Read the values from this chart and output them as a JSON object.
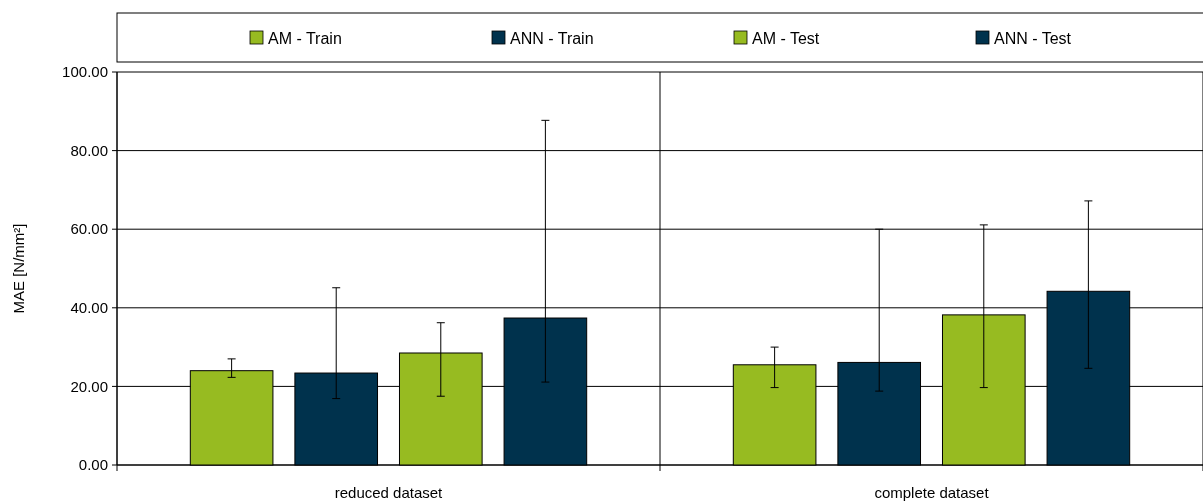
{
  "chart_data": {
    "type": "bar",
    "ylabel": "MAE  [N/mm²]",
    "categories": [
      "reduced dataset",
      "complete dataset"
    ],
    "series": [
      {
        "name": "AM - Train",
        "color": "#97bb21",
        "values": [
          24.0,
          25.5
        ],
        "errors": [
          [
            22.3,
            27.0
          ],
          [
            19.7,
            30.0
          ]
        ]
      },
      {
        "name": "ANN - Train",
        "color": "#00324d",
        "values": [
          23.4,
          26.1
        ],
        "errors": [
          [
            16.9,
            45.1
          ],
          [
            18.8,
            60.0
          ]
        ]
      },
      {
        "name": "AM - Test",
        "color": "#97bb21",
        "values": [
          28.5,
          38.2
        ],
        "errors": [
          [
            17.5,
            36.2
          ],
          [
            19.7,
            61.1
          ]
        ]
      },
      {
        "name": "ANN - Test",
        "color": "#00324d",
        "values": [
          37.4,
          44.2
        ],
        "errors": [
          [
            21.1,
            87.7
          ],
          [
            24.6,
            67.2
          ]
        ]
      }
    ],
    "ylim": [
      0,
      100
    ],
    "yticks": [
      {
        "value": 0,
        "label": "0.00"
      },
      {
        "value": 20,
        "label": "20.00"
      },
      {
        "value": 40,
        "label": "40.00"
      },
      {
        "value": 60,
        "label": "60.00"
      },
      {
        "value": 80,
        "label": "80.00"
      },
      {
        "value": 100,
        "label": "100.00"
      }
    ],
    "grid": "y",
    "legend": "top"
  }
}
